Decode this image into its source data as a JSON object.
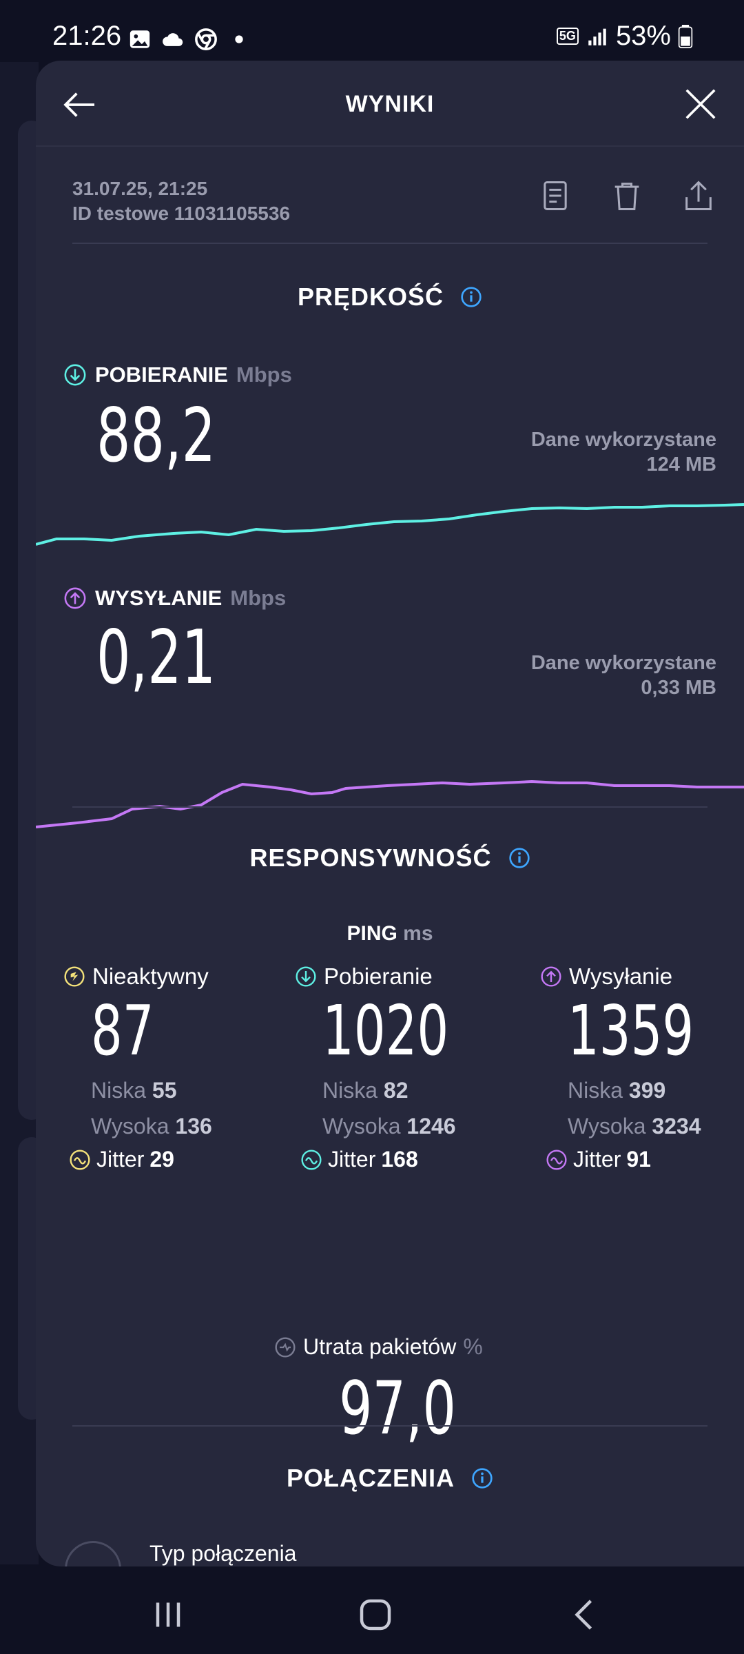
{
  "status_bar": {
    "time": "21:26",
    "network": "5G",
    "battery": "53%"
  },
  "header": {
    "title": "WYNIKI"
  },
  "meta": {
    "datetime": "31.07.25, 21:25",
    "test_id": "ID testowe 11031105536"
  },
  "speed": {
    "title": "PRĘDKOŚĆ",
    "download": {
      "label": "POBIERANIE",
      "unit": "Mbps",
      "value": "88,2",
      "data_used_label": "Dane wykorzystane",
      "data_used": "124 MB"
    },
    "upload": {
      "label": "WYSYŁANIE",
      "unit": "Mbps",
      "value": "0,21",
      "data_used_label": "Dane wykorzystane",
      "data_used": "0,33 MB"
    }
  },
  "responsiveness": {
    "title": "RESPONSYWNOŚĆ",
    "ping_label": "PING",
    "ping_unit": "ms",
    "idle": {
      "label": "Nieaktywny",
      "value": "87",
      "low_label": "Niska",
      "low": "55",
      "high_label": "Wysoka",
      "high": "136",
      "jitter_label": "Jitter",
      "jitter": "29"
    },
    "download": {
      "label": "Pobieranie",
      "value": "1020",
      "low_label": "Niska",
      "low": "82",
      "high_label": "Wysoka",
      "high": "1246",
      "jitter_label": "Jitter",
      "jitter": "168"
    },
    "upload": {
      "label": "Wysyłanie",
      "value": "1359",
      "low_label": "Niska",
      "low": "399",
      "high_label": "Wysoka",
      "high": "3234",
      "jitter_label": "Jitter",
      "jitter": "91"
    },
    "packet_loss": {
      "label": "Utrata pakietów",
      "unit": "%",
      "value": "97,0"
    }
  },
  "connections": {
    "title": "POŁĄCZENIA",
    "type_label": "Typ połączenia"
  },
  "colors": {
    "download": "#5ef0e4",
    "upload": "#c478f5",
    "idle": "#f4e27a",
    "info": "#3ea6ff",
    "background": "#26283c"
  }
}
